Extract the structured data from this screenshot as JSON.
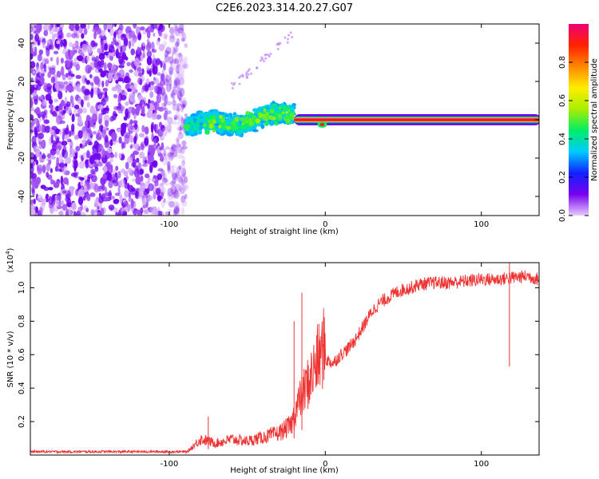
{
  "figure": {
    "title": "C2E6.2023.314.20.27.G07"
  },
  "chart_data": [
    {
      "type": "heatmap",
      "title": "C2E6.2023.314.20.27.G07",
      "xlabel": "Height of straight line (km)",
      "ylabel": "Frequency (Hz)",
      "xlim": [
        -189,
        137
      ],
      "ylim": [
        -50,
        50
      ],
      "xticks": [
        -100,
        0,
        100
      ],
      "yticks": [
        -40,
        -20,
        0,
        20,
        40
      ],
      "xtick_labels": [
        "-100",
        "0",
        "100"
      ],
      "ytick_labels": [
        "-40",
        "-20",
        "0",
        "20",
        "40"
      ],
      "colorbar": {
        "label": "Normalized spectral amplitude",
        "range": [
          0,
          1
        ],
        "ticks": [
          0.0,
          0.2,
          0.4,
          0.6,
          0.8
        ],
        "tick_labels": [
          "0.0",
          "0.2",
          "0.4",
          "0.6",
          "0.8"
        ],
        "colormap": [
          "#e6ccff",
          "#7700ee",
          "#1122ff",
          "#00ccff",
          "#00ee66",
          "#aaee00",
          "#ffee00",
          "#ff8800",
          "#ff2200",
          "#ee0077"
        ]
      },
      "grid": false,
      "features": [
        {
          "region": "noise",
          "x": [
            -189,
            -89
          ],
          "y": [
            -50,
            50
          ],
          "amplitude": 0.1
        },
        {
          "region": "turbulent",
          "x": [
            -89,
            -20
          ],
          "y_center": [
            -4,
            3
          ],
          "y_spread": 6,
          "amplitude": 0.3
        },
        {
          "region": "carrier",
          "x": [
            -20,
            137
          ],
          "y": 0,
          "amplitude": 1.0
        }
      ]
    },
    {
      "type": "line",
      "xlabel": "Height of straight line (km)",
      "ylabel": "SNR (10 * v/v)",
      "scale_label": "(x10^4)",
      "scale_label_parts": {
        "prefix": "(x10",
        "exp": "4",
        "suffix": ")"
      },
      "xlim": [
        -189,
        137
      ],
      "ylim": [
        0,
        1.15
      ],
      "xticks": [
        -100,
        0,
        100
      ],
      "yticks": [
        0.2,
        0.4,
        0.6,
        0.8,
        1.0
      ],
      "xtick_labels": [
        "-100",
        "0",
        "100"
      ],
      "ytick_labels": [
        "0.2",
        "0.4",
        "0.6",
        "0.8",
        "1.0"
      ],
      "color": "#ee3333",
      "grid": false,
      "series": [
        {
          "x": [
            -189,
            -150,
            -100,
            -88,
            -80,
            -70,
            -60,
            -50,
            -40,
            -30,
            -22,
            -18,
            -15,
            -12,
            -10,
            -8,
            -5,
            -2,
            0,
            5,
            10,
            15,
            20,
            25,
            30,
            35,
            40,
            45,
            50,
            55,
            60,
            70,
            80,
            90,
            100,
            110,
            120,
            130,
            137
          ],
          "y": [
            0.02,
            0.02,
            0.02,
            0.02,
            0.08,
            0.06,
            0.08,
            0.07,
            0.09,
            0.11,
            0.15,
            0.25,
            0.3,
            0.35,
            0.38,
            0.42,
            0.48,
            0.52,
            0.57,
            0.55,
            0.6,
            0.64,
            0.7,
            0.78,
            0.86,
            0.91,
            0.94,
            0.97,
            0.99,
            1.0,
            1.02,
            1.03,
            1.03,
            1.04,
            1.05,
            1.05,
            1.06,
            1.07,
            1.05
          ]
        }
      ],
      "spikes": [
        {
          "x": -15,
          "y": 0.97
        },
        {
          "x": -20,
          "y": 0.8
        },
        {
          "x": -75,
          "y": 0.23
        },
        {
          "x": 118,
          "y": 1.17
        }
      ]
    }
  ]
}
